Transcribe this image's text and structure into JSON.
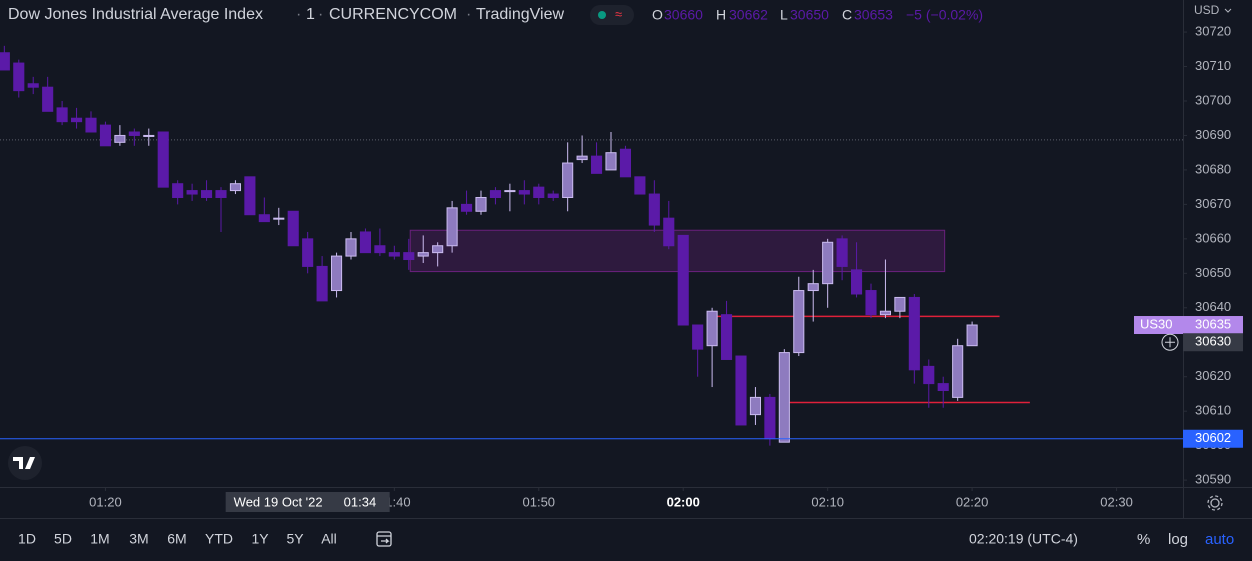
{
  "chart_data": {
    "type": "candlestick",
    "title": "Dow Jones Industrial Average Index",
    "interval": "1",
    "exchange": "CURRENCYCOM",
    "source": "TradingView",
    "open": [
      30714,
      30711,
      30705,
      30704,
      30698,
      30695,
      30695,
      30693,
      30688,
      30691,
      30690,
      30691,
      30676,
      30674,
      30674,
      30674,
      30674,
      30678,
      30667,
      30666,
      30668,
      30660,
      30652,
      30645,
      30655,
      30662,
      30658,
      30656,
      30656,
      30655,
      30656,
      30658,
      30670,
      30668,
      30674,
      30674,
      30674,
      30675,
      30673,
      30672,
      30683,
      30684,
      30680,
      30686,
      30678,
      30673,
      30666,
      30661,
      30635,
      30629,
      30638,
      30626,
      30609,
      30614,
      30601,
      30627,
      30645,
      30647,
      30660,
      30651,
      30645,
      30638,
      30639,
      30643,
      30623,
      30618,
      30614,
      30629
    ],
    "high": [
      30716,
      30712,
      30707,
      30707,
      30700,
      30698,
      30697,
      30694,
      30693,
      30692,
      30692,
      30691,
      30677,
      30676,
      30677,
      30675,
      30677,
      30678,
      30672,
      30669,
      30668,
      30662,
      30655,
      30656,
      30662,
      30663,
      30663,
      30658,
      30660,
      30661,
      30659,
      30671,
      30674,
      30674,
      30675,
      30676,
      30677,
      30676,
      30674,
      30688,
      30690,
      30688,
      30691,
      30687,
      30678,
      30677,
      30671,
      30661,
      30635,
      30640,
      30642,
      30626,
      30617,
      30615,
      30628,
      30649,
      30651,
      30660,
      30661,
      30659,
      30647,
      30654,
      30643,
      30644,
      30625,
      30620,
      30631,
      30636
    ],
    "low": [
      30709,
      30701,
      30702,
      30697,
      30693,
      30692,
      30691,
      30687,
      30687,
      30687,
      30687,
      30675,
      30670,
      30671,
      30671,
      30662,
      30673,
      30667,
      30665,
      30664,
      30658,
      30650,
      30642,
      30643,
      30654,
      30656,
      30655,
      30654,
      30651,
      30653,
      30652,
      30656,
      30667,
      30667,
      30670,
      30668,
      30670,
      30670,
      30671,
      30668,
      30682,
      30679,
      30680,
      30678,
      30673,
      30662,
      30657,
      30635,
      30620,
      30617,
      30625,
      30606,
      30606,
      30600,
      30601,
      30626,
      30636,
      30640,
      30648,
      30643,
      30637,
      30637,
      30637,
      30618,
      30611,
      30611,
      30613,
      30629
    ],
    "close": [
      30709,
      30703,
      30704,
      30697,
      30694,
      30694,
      30691,
      30687,
      30690,
      30690,
      30690,
      30675,
      30672,
      30673,
      30672,
      30672,
      30676,
      30667,
      30665,
      30666,
      30658,
      30652,
      30642,
      30655,
      30660,
      30656,
      30656,
      30655,
      30654,
      30656,
      30658,
      30669,
      30668,
      30672,
      30672,
      30674,
      30673,
      30672,
      30672,
      30682,
      30684,
      30679,
      30685,
      30678,
      30673,
      30664,
      30658,
      30635,
      30628,
      30639,
      30625,
      30606,
      30614,
      30602,
      30627,
      30645,
      30647,
      30659,
      30652,
      30644,
      30638,
      30639,
      30643,
      30622,
      30618,
      30616,
      30629,
      30635
    ],
    "up_color": "#8e7bbf",
    "up_border": "#cbbcf0",
    "down_color": "#5b1aa8",
    "xlim": [
      -0.3,
      81.6
    ],
    "xticks": [
      {
        "value": 7,
        "label": "01:20"
      },
      {
        "value": 27,
        "label": "01:40"
      },
      {
        "value": 37,
        "label": "01:50"
      },
      {
        "value": 47,
        "label": "02:00"
      },
      {
        "value": 57,
        "label": "02:10"
      },
      {
        "value": 67,
        "label": "02:20"
      },
      {
        "value": 77,
        "label": "02:30"
      }
    ],
    "ylim": [
      30588,
      30729.3
    ],
    "yticks": [
      30590,
      30600,
      30610,
      30620,
      30630,
      30640,
      30650,
      30660,
      30670,
      30680,
      30690,
      30700,
      30710,
      30720
    ],
    "currency": "USD",
    "symbol_tag": "US30",
    "price_line": 30602,
    "dotted_line": 30688.7,
    "zone": {
      "from": 28.1,
      "to": 65.1,
      "low": 30650.5,
      "high": 30662.5,
      "color": "#9c27b0"
    },
    "red_lines": [
      {
        "from": 49.1,
        "to": 68.9,
        "price": 30637.5
      },
      {
        "from": 53.7,
        "to": 71,
        "price": 30612.5
      }
    ],
    "legend": {
      "o_label": "O",
      "o": "30660",
      "h_label": "H",
      "h": "30662",
      "l_label": "L",
      "l": "30650",
      "c_label": "C",
      "c": "30653",
      "change": "−5 (−0.02%)"
    },
    "crosshair": {
      "price": 30630,
      "date": "Wed 19 Oct '22",
      "time": "01:34",
      "index": 21
    }
  },
  "toolbar": {
    "ranges": [
      "1D",
      "5D",
      "1M",
      "3M",
      "6M",
      "YTD",
      "1Y",
      "5Y",
      "All"
    ],
    "clock": "02:20:19 (UTC-4)",
    "percent": "%",
    "log": "log",
    "auto": "auto"
  }
}
